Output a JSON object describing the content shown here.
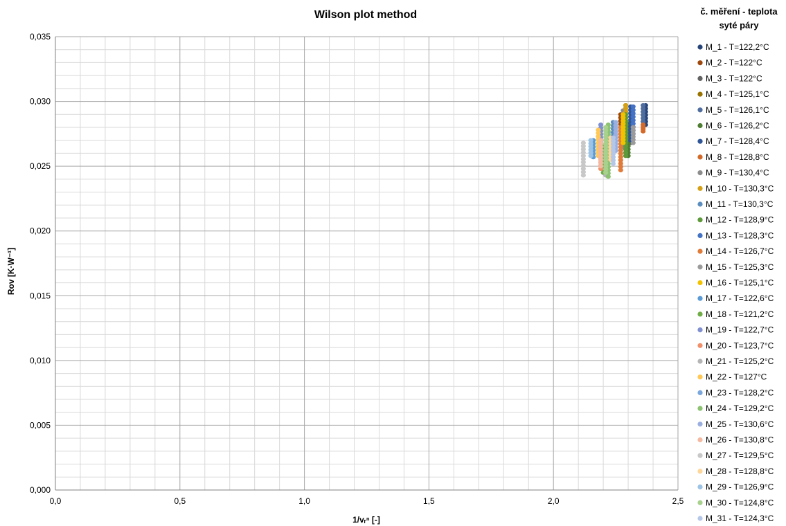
{
  "chart_data": {
    "type": "scatter",
    "title": "Wilson plot method",
    "xlabel": "1/vᵣⁿ [-]",
    "ylabel": "Rov [K·W⁻¹]",
    "xlim": [
      0,
      2.5
    ],
    "ylim": [
      0,
      0.035
    ],
    "x_ticks": [
      "0,0",
      "0,5",
      "1,0",
      "1,5",
      "2,0",
      "2,5"
    ],
    "y_ticks": [
      "0,000",
      "0,005",
      "0,010",
      "0,015",
      "0,020",
      "0,025",
      "0,030",
      "0,035"
    ],
    "x_tick_values": [
      0,
      0.5,
      1.0,
      1.5,
      2.0,
      2.5
    ],
    "y_tick_values": [
      0,
      0.005,
      0.01,
      0.015,
      0.02,
      0.025,
      0.03,
      0.035
    ],
    "grid": true,
    "legend_position": "right",
    "legend_title_lines": [
      "č. měření - teplota",
      "syté páry"
    ],
    "series": [
      {
        "name": "M_1 - T=122,2°C",
        "color": "#264478",
        "x": 2.37,
        "ymin": 0.0282,
        "ymax": 0.0297
      },
      {
        "name": "M_2 - T=122°C",
        "color": "#9E480E",
        "x": 2.27,
        "ymin": 0.027,
        "ymax": 0.029
      },
      {
        "name": "M_3 - T=122°C",
        "color": "#636363",
        "x": 2.31,
        "ymin": 0.0268,
        "ymax": 0.028
      },
      {
        "name": "M_4 - T=125,1°C",
        "color": "#997300",
        "x": 2.29,
        "ymin": 0.0275,
        "ymax": 0.0297
      },
      {
        "name": "M_5 - T=126,1°C",
        "color": "#4F6D9E",
        "x": 2.36,
        "ymin": 0.0282,
        "ymax": 0.0297
      },
      {
        "name": "M_6 - T=126,2°C",
        "color": "#4E7E32",
        "x": 2.3,
        "ymin": 0.0258,
        "ymax": 0.0283
      },
      {
        "name": "M_7 - T=128,4°C",
        "color": "#2F5597",
        "x": 2.31,
        "ymin": 0.027,
        "ymax": 0.0296
      },
      {
        "name": "M_8 - T=128,8°C",
        "color": "#D46A2A",
        "x": 2.36,
        "ymin": 0.0277,
        "ymax": 0.0282
      },
      {
        "name": "M_9 - T=130,4°C",
        "color": "#8C8C8C",
        "x": 2.28,
        "ymin": 0.0265,
        "ymax": 0.0293
      },
      {
        "name": "M_10 - T=130,3°C",
        "color": "#D4A017",
        "x": 2.29,
        "ymin": 0.027,
        "ymax": 0.0297
      },
      {
        "name": "M_11 - T=130,3°C",
        "color": "#5B8DBE",
        "x": 2.24,
        "ymin": 0.0263,
        "ymax": 0.0284
      },
      {
        "name": "M_12 - T=128,9°C",
        "color": "#5E9A3B",
        "x": 2.29,
        "ymin": 0.0258,
        "ymax": 0.029
      },
      {
        "name": "M_13 - T=128,3°C",
        "color": "#4472C4",
        "x": 2.32,
        "ymin": 0.0275,
        "ymax": 0.0296
      },
      {
        "name": "M_14 - T=126,7°C",
        "color": "#E07B39",
        "x": 2.27,
        "ymin": 0.0247,
        "ymax": 0.028
      },
      {
        "name": "M_15 - T=125,3°C",
        "color": "#9B9B9B",
        "x": 2.32,
        "ymin": 0.0268,
        "ymax": 0.028
      },
      {
        "name": "M_16 - T=125,1°C",
        "color": "#F2C200",
        "x": 2.28,
        "ymin": 0.0268,
        "ymax": 0.029
      },
      {
        "name": "M_17 - T=122,6°C",
        "color": "#5B9BD5",
        "x": 2.16,
        "ymin": 0.0257,
        "ymax": 0.027
      },
      {
        "name": "M_18 - T=121,2°C",
        "color": "#70AD47",
        "x": 2.2,
        "ymin": 0.0245,
        "ymax": 0.0265
      },
      {
        "name": "M_19 - T=122,7°C",
        "color": "#7F8FD0",
        "x": 2.19,
        "ymin": 0.0255,
        "ymax": 0.0282
      },
      {
        "name": "M_20 - T=123,7°C",
        "color": "#F0906A",
        "x": 2.19,
        "ymin": 0.0248,
        "ymax": 0.027
      },
      {
        "name": "M_21 - T=125,2°C",
        "color": "#B4B4B4",
        "x": 2.21,
        "ymin": 0.0243,
        "ymax": 0.0262
      },
      {
        "name": "M_22 - T=127°C",
        "color": "#FFC857",
        "x": 2.18,
        "ymin": 0.0258,
        "ymax": 0.0278
      },
      {
        "name": "M_23 - T=128,2°C",
        "color": "#7AA7DC",
        "x": 2.22,
        "ymin": 0.0255,
        "ymax": 0.0276
      },
      {
        "name": "M_24 - T=129,2°C",
        "color": "#8CC271",
        "x": 2.22,
        "ymin": 0.0242,
        "ymax": 0.0282
      },
      {
        "name": "M_25 - T=130,6°C",
        "color": "#9BAFDF",
        "x": 2.25,
        "ymin": 0.0262,
        "ymax": 0.0284
      },
      {
        "name": "M_26 - T=130,8°C",
        "color": "#F4B9A0",
        "x": 2.19,
        "ymin": 0.025,
        "ymax": 0.027
      },
      {
        "name": "M_27 - T=129,5°C",
        "color": "#C8C8C8",
        "x": 2.12,
        "ymin": 0.0243,
        "ymax": 0.0268
      },
      {
        "name": "M_28 - T=128,8°C",
        "color": "#FFD699",
        "x": 2.23,
        "ymin": 0.0255,
        "ymax": 0.0272
      },
      {
        "name": "M_29 - T=126,9°C",
        "color": "#9DC3E6",
        "x": 2.15,
        "ymin": 0.0258,
        "ymax": 0.027
      },
      {
        "name": "M_30 - T=124,8°C",
        "color": "#A9D18E",
        "x": 2.21,
        "ymin": 0.0245,
        "ymax": 0.028
      },
      {
        "name": "M_31 - T=124,3°C",
        "color": "#B4C7E7",
        "x": 2.24,
        "ymin": 0.0252,
        "ymax": 0.0272
      }
    ]
  }
}
